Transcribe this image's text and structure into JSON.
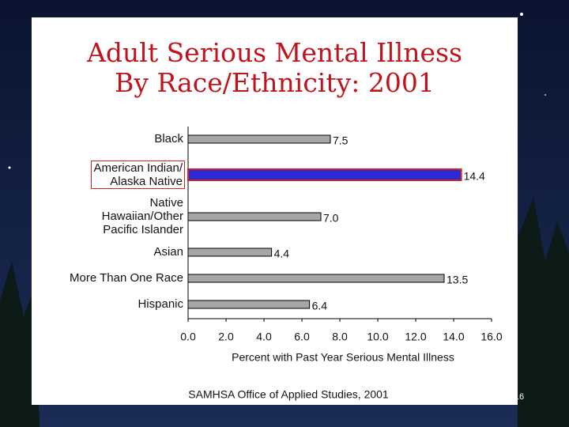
{
  "chart_data": {
    "type": "hbar",
    "title": "Adult Serious Mental Illness\nBy Race/Ethnicity: 2001",
    "categories": [
      "Black",
      "American Indian/\nAlaska Native",
      "Native\nHawaiian/Other\nPacific Islander",
      "Asian",
      "More Than One Race",
      "Hispanic"
    ],
    "values": [
      7.5,
      14.4,
      7.0,
      4.4,
      13.5,
      6.4
    ],
    "value_labels": [
      "7.5",
      "14.4",
      "7.0",
      "4.4",
      "13.5",
      "6.4"
    ],
    "color": "#a6a6a6",
    "highlight_index": 1,
    "highlight_fill": "#2b2bd6",
    "highlight_color": "#d42020",
    "xlim": [
      0,
      16
    ],
    "xticks": [
      {
        "value": 0,
        "label": "0.0"
      },
      {
        "value": 2,
        "label": "2.0"
      },
      {
        "value": 4,
        "label": "4.0"
      },
      {
        "value": 6,
        "label": "6.0"
      },
      {
        "value": 8,
        "label": "8.0"
      },
      {
        "value": 10,
        "label": "10.0"
      },
      {
        "value": 12,
        "label": "12.0"
      },
      {
        "value": 14,
        "label": "14.0"
      },
      {
        "value": 16,
        "label": "16.0"
      }
    ],
    "xlabel": "Percent with Past Year Serious Mental Illness",
    "source": "SAMHSA Office of Applied Studies, 2001",
    "page_number": "16"
  }
}
